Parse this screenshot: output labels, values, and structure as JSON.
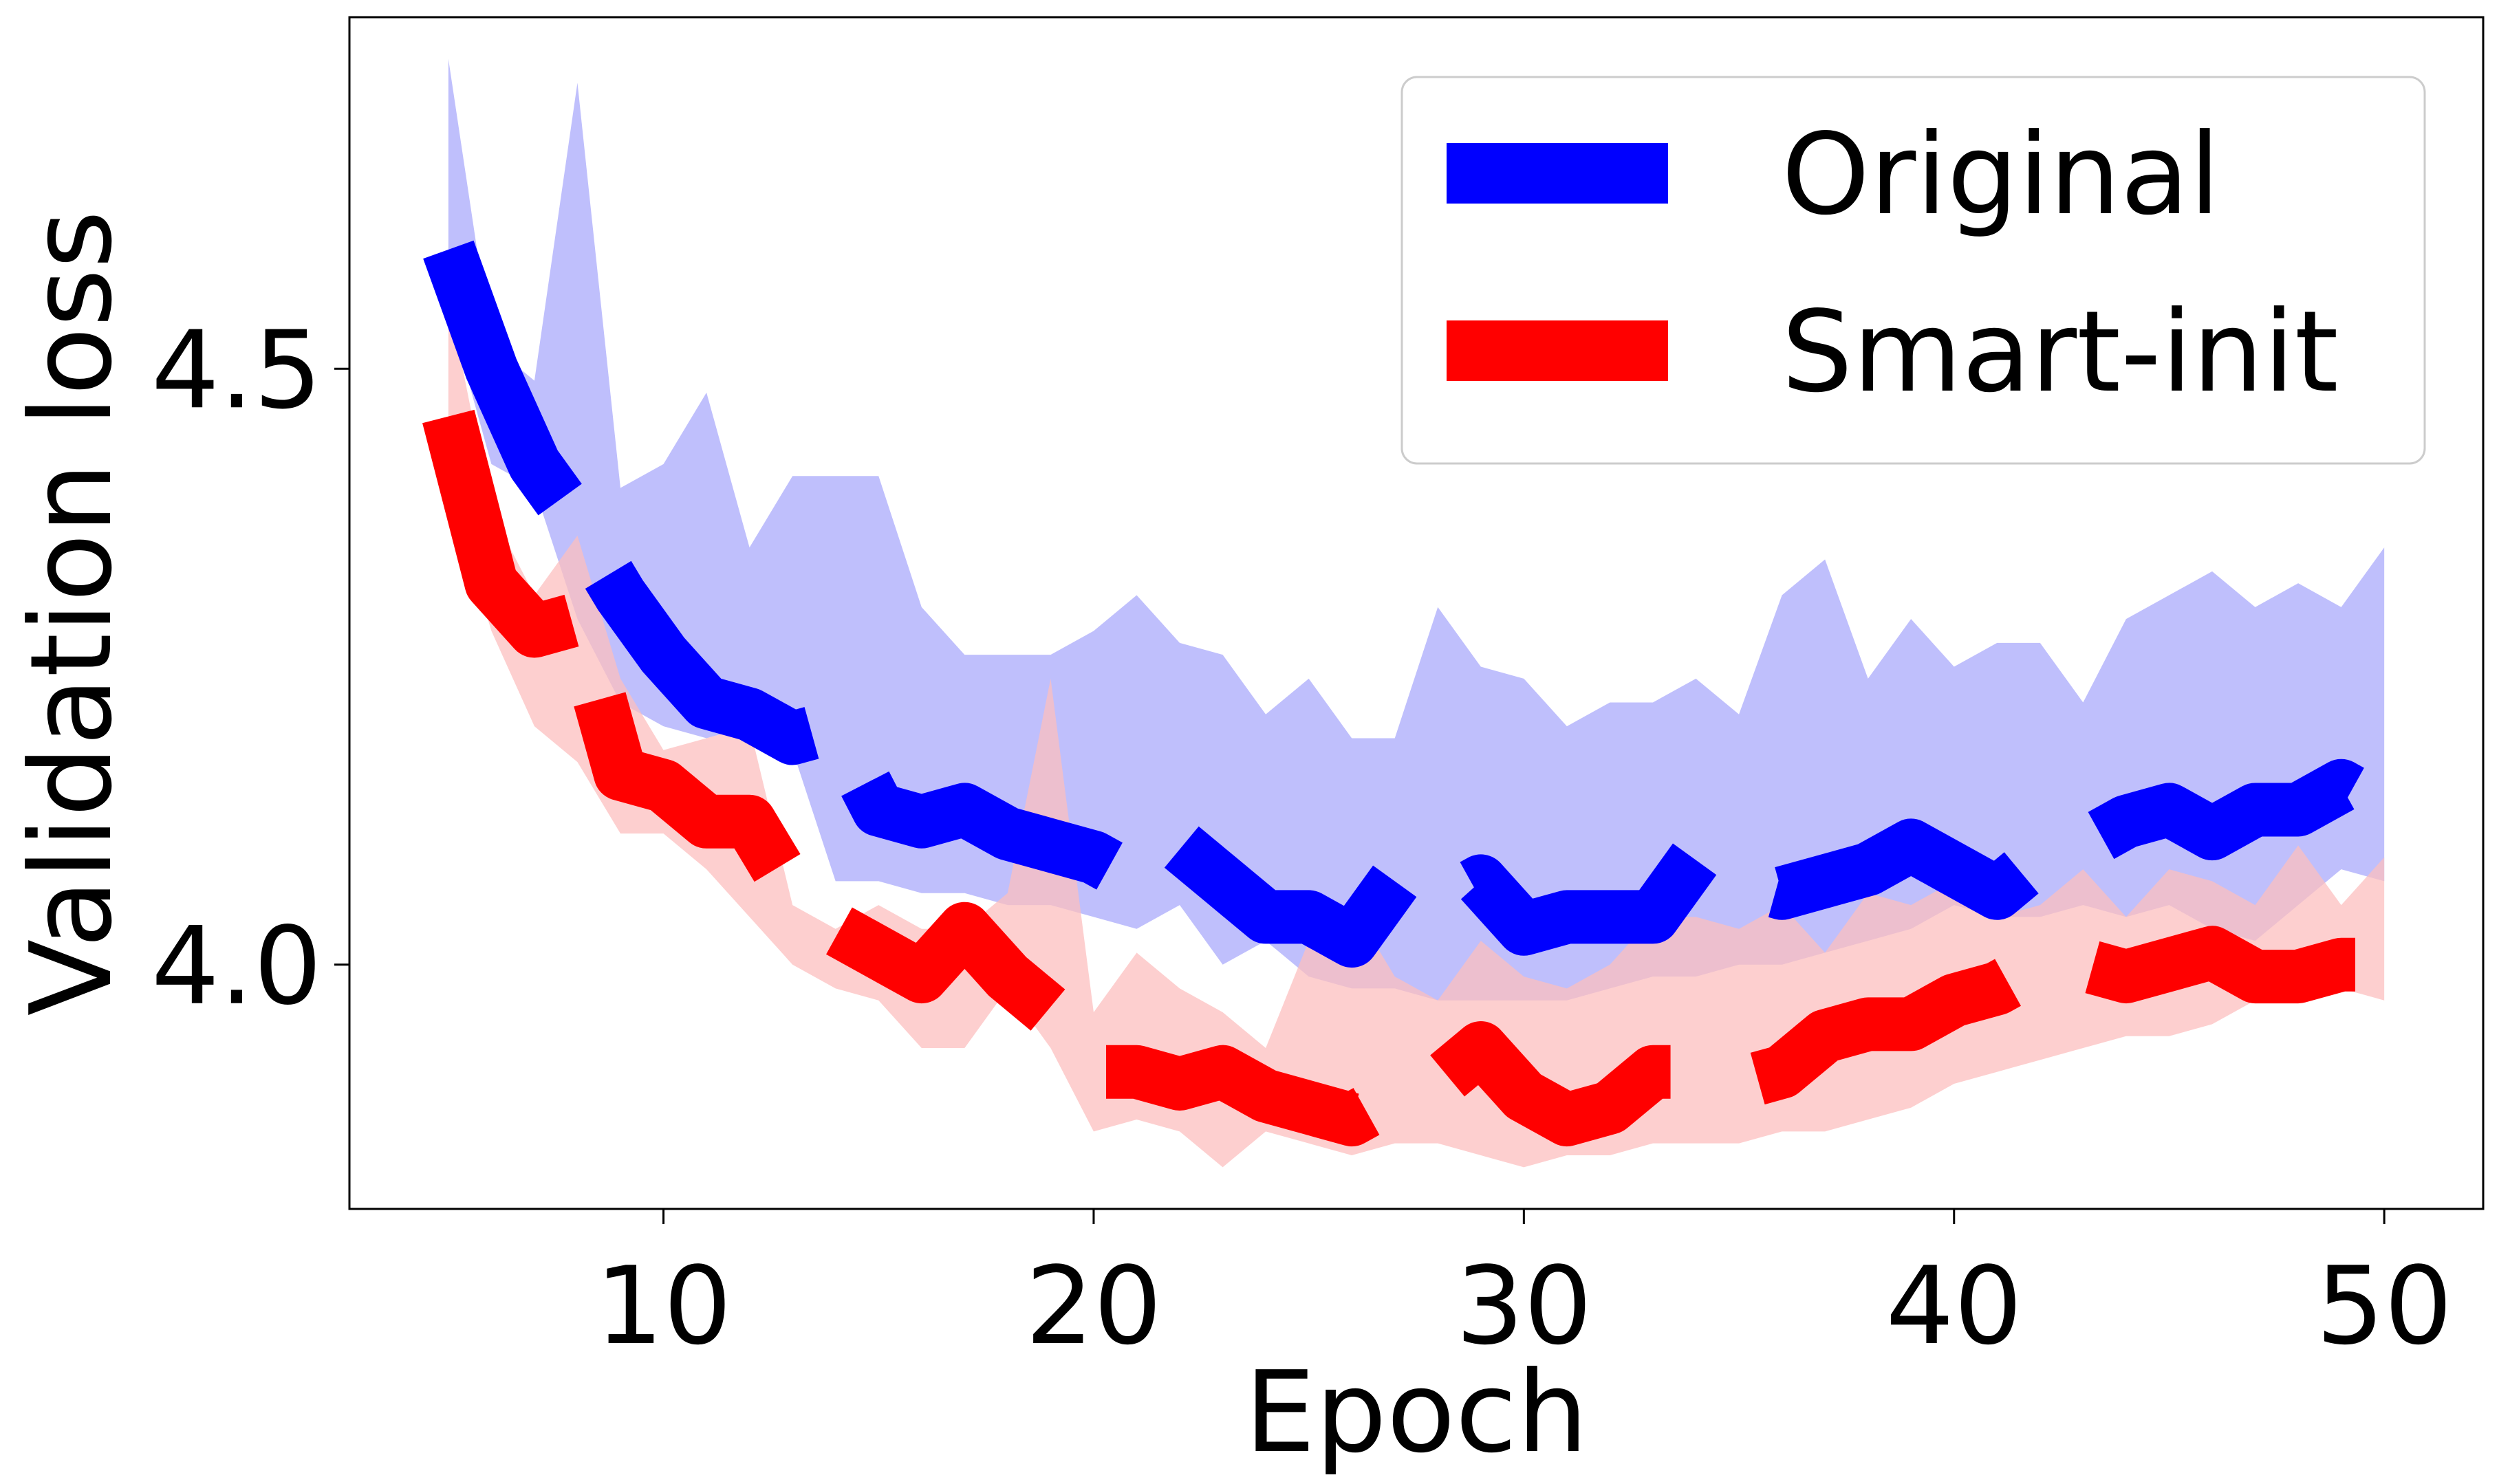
{
  "chart_data": {
    "type": "line",
    "title": "",
    "xlabel": "Epoch",
    "ylabel": "Validation loss",
    "xlim": [
      2.7,
      52.3
    ],
    "ylim": [
      3.795,
      4.795
    ],
    "xticks": [
      10,
      20,
      30,
      40,
      50
    ],
    "yticks": [
      4.0,
      4.5
    ],
    "xtick_labels": [
      "10",
      "20",
      "30",
      "40",
      "50"
    ],
    "ytick_labels": [
      "4.0",
      "4.5"
    ],
    "grid": false,
    "legend": {
      "placement": "top-right",
      "entries": [
        "Original",
        "Smart-init"
      ]
    },
    "x": [
      5,
      6,
      7,
      8,
      9,
      10,
      11,
      12,
      13,
      14,
      15,
      16,
      17,
      18,
      19,
      20,
      21,
      22,
      23,
      24,
      25,
      26,
      27,
      28,
      29,
      30,
      31,
      32,
      33,
      34,
      35,
      36,
      37,
      38,
      39,
      40,
      41,
      42,
      43,
      44,
      45,
      46,
      47,
      48,
      49,
      50
    ],
    "series": [
      {
        "name": "Original",
        "color": "#0000ff",
        "band_color": "#bfbffc",
        "line_style": "dashed",
        "mean": [
          4.6,
          4.5,
          4.42,
          4.37,
          4.31,
          4.26,
          4.22,
          4.21,
          4.19,
          4.2,
          4.13,
          4.12,
          4.13,
          4.11,
          4.1,
          4.09,
          4.07,
          4.1,
          4.07,
          4.04,
          4.04,
          4.02,
          4.07,
          4.05,
          4.07,
          4.03,
          4.04,
          4.04,
          4.04,
          4.09,
          4.07,
          4.06,
          4.07,
          4.08,
          4.1,
          4.08,
          4.06,
          4.09,
          4.1,
          4.12,
          4.13,
          4.11,
          4.13,
          4.13,
          4.15,
          4.13
        ],
        "upper": [
          4.76,
          4.52,
          4.49,
          4.74,
          4.4,
          4.42,
          4.48,
          4.35,
          4.41,
          4.41,
          4.41,
          4.3,
          4.26,
          4.26,
          4.26,
          4.28,
          4.31,
          4.27,
          4.26,
          4.21,
          4.24,
          4.19,
          4.19,
          4.3,
          4.25,
          4.24,
          4.2,
          4.22,
          4.22,
          4.24,
          4.21,
          4.31,
          4.34,
          4.24,
          4.29,
          4.25,
          4.27,
          4.27,
          4.22,
          4.29,
          4.31,
          4.33,
          4.3,
          4.32,
          4.3,
          4.35
        ],
        "lower": [
          4.55,
          4.42,
          4.4,
          4.29,
          4.22,
          4.2,
          4.19,
          4.2,
          4.18,
          4.07,
          4.07,
          4.06,
          4.06,
          4.05,
          4.05,
          4.04,
          4.03,
          4.05,
          4.0,
          4.02,
          3.99,
          3.98,
          3.98,
          3.97,
          3.97,
          3.97,
          3.97,
          3.98,
          3.99,
          3.99,
          4.0,
          4.0,
          4.01,
          4.02,
          4.03,
          4.05,
          4.04,
          4.04,
          4.05,
          4.04,
          4.05,
          4.03,
          4.02,
          4.05,
          4.08,
          4.07
        ]
      },
      {
        "name": "Smart-init",
        "color": "#ff0000",
        "band_color": "#fcbfbf",
        "line_style": "dashed",
        "mean": [
          4.46,
          4.32,
          4.28,
          4.29,
          4.16,
          4.15,
          4.12,
          4.12,
          4.06,
          4.03,
          4.01,
          3.99,
          4.03,
          3.99,
          3.96,
          3.91,
          3.91,
          3.9,
          3.91,
          3.89,
          3.88,
          3.87,
          3.89,
          3.9,
          3.93,
          3.89,
          3.87,
          3.88,
          3.91,
          3.91,
          3.9,
          3.91,
          3.94,
          3.95,
          3.95,
          3.97,
          3.98,
          4.0,
          4.0,
          3.99,
          4.0,
          4.01,
          3.99,
          3.99,
          4.0,
          4.0
        ],
        "upper": [
          4.56,
          4.38,
          4.31,
          4.36,
          4.24,
          4.18,
          4.19,
          4.2,
          4.05,
          4.03,
          4.05,
          4.03,
          4.03,
          4.06,
          4.24,
          3.96,
          4.01,
          3.98,
          3.96,
          3.93,
          4.02,
          4.05,
          3.99,
          3.97,
          4.02,
          3.99,
          3.98,
          4.0,
          4.04,
          4.04,
          4.03,
          4.05,
          4.01,
          4.06,
          4.05,
          4.07,
          4.04,
          4.05,
          4.08,
          4.04,
          4.08,
          4.07,
          4.05,
          4.1,
          4.05,
          4.09
        ],
        "lower": [
          4.4,
          4.28,
          4.2,
          4.17,
          4.11,
          4.11,
          4.08,
          4.04,
          4.0,
          3.98,
          3.97,
          3.93,
          3.93,
          3.98,
          3.93,
          3.86,
          3.87,
          3.86,
          3.83,
          3.86,
          3.85,
          3.84,
          3.85,
          3.85,
          3.84,
          3.83,
          3.84,
          3.84,
          3.85,
          3.85,
          3.85,
          3.86,
          3.86,
          3.87,
          3.88,
          3.9,
          3.91,
          3.92,
          3.93,
          3.94,
          3.94,
          3.95,
          3.97,
          3.98,
          3.98,
          3.97
        ]
      }
    ]
  }
}
